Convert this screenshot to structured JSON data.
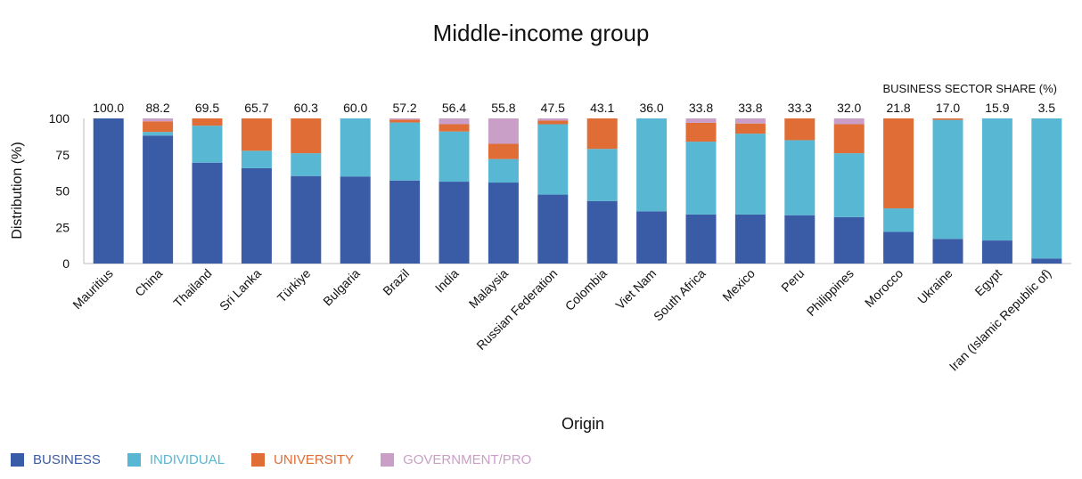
{
  "chart_data": {
    "type": "bar",
    "stacked": true,
    "title": "Middle-income group",
    "xlabel": "Origin",
    "ylabel": "Distribution (%)",
    "ylim": [
      0,
      100
    ],
    "yticks": [
      0,
      25,
      50,
      75,
      100
    ],
    "top_label_title": "BUSINESS SECTOR SHARE (%)",
    "categories": [
      "Mauritius",
      "China",
      "Thailand",
      "Sri Lanka",
      "Türkiye",
      "Bulgaria",
      "Brazil",
      "India",
      "Malaysia",
      "Russian Federation",
      "Colombia",
      "Viet Nam",
      "South Africa",
      "Mexico",
      "Peru",
      "Philippines",
      "Morocco",
      "Ukraine",
      "Egypt",
      "Iran (Islamic Republic of)"
    ],
    "top_labels": [
      "100.0",
      "88.2",
      "69.5",
      "65.7",
      "60.3",
      "60.0",
      "57.2",
      "56.4",
      "55.8",
      "47.5",
      "43.1",
      "36.0",
      "33.8",
      "33.8",
      "33.3",
      "32.0",
      "21.8",
      "17.0",
      "15.9",
      "3.5"
    ],
    "series": [
      {
        "name": "BUSINESS",
        "color": "#3a5ba6",
        "values": [
          100.0,
          88.2,
          69.5,
          65.7,
          60.3,
          60.0,
          57.2,
          56.4,
          55.8,
          47.5,
          43.1,
          36.0,
          33.8,
          33.8,
          33.3,
          32.0,
          21.8,
          17.0,
          15.9,
          3.5
        ]
      },
      {
        "name": "INDIVIDUAL",
        "color": "#58b7d3",
        "values": [
          0,
          2.5,
          25.5,
          12.0,
          15.7,
          40.0,
          40.0,
          34.6,
          16.2,
          48.5,
          35.9,
          64.0,
          50.2,
          55.7,
          51.7,
          44.0,
          16.2,
          82.0,
          84.1,
          96.5
        ]
      },
      {
        "name": "UNIVERSITY",
        "color": "#e06d36",
        "values": [
          0,
          7.3,
          5.0,
          22.3,
          24.0,
          0,
          2.0,
          5.0,
          10.5,
          2.5,
          21.0,
          0,
          13.0,
          7.0,
          15.0,
          20.0,
          62.0,
          1.0,
          0,
          0
        ]
      },
      {
        "name": "GOVERNMENT/PRO",
        "color": "#c99fc8",
        "values": [
          0,
          2.0,
          0,
          0,
          0,
          0,
          0.8,
          4.0,
          17.5,
          1.5,
          0,
          0,
          3.0,
          3.5,
          0,
          4.0,
          0,
          0,
          0,
          0
        ]
      }
    ]
  }
}
